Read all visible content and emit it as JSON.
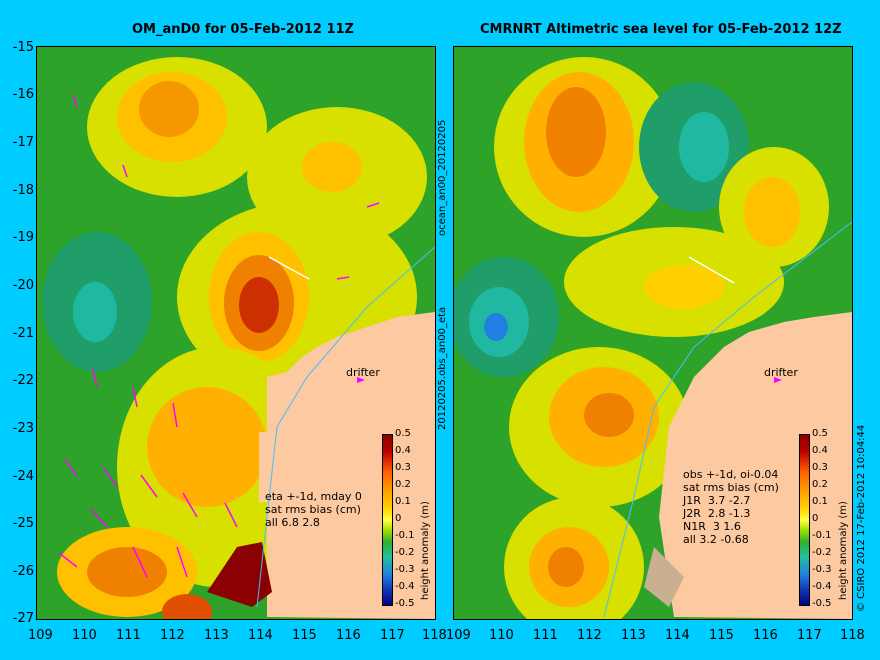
{
  "left_panel": {
    "title": "OM_anD0 for 05-Feb-2012 11Z",
    "side_label": "ocean_an00_20120205",
    "colorbar_label": "height anomaly (m)",
    "stats": [
      "eta +-1d, mday 0",
      "sat rms bias (cm)",
      "all 6.8 2.8"
    ],
    "drifter_label": "drifter"
  },
  "right_panel": {
    "title": "CMRNRT Altimetric sea level  for 05-Feb-2012 12Z",
    "side_label": "20120205.obs_an00_eta",
    "colorbar_label": "height anomaly (m)",
    "stats": [
      "obs +-1d, oi-0.04",
      "sat rms bias (cm)",
      "J1R  3.7 -2.7",
      "J2R  2.8 -1.3",
      "N1R  3 1.6",
      "all 3.2 -0.68"
    ],
    "drifter_label": "drifter"
  },
  "copyright": "© CSIRO 2012  17-Feb-2012 10:04:44",
  "y_ticks": [
    "-15",
    "-16",
    "-17",
    "-18",
    "-19",
    "-20",
    "-21",
    "-22",
    "-23",
    "-24",
    "-25",
    "-26",
    "-27"
  ],
  "x_ticks": [
    "109",
    "110",
    "111",
    "112",
    "113",
    "114",
    "115",
    "116",
    "117",
    "118"
  ],
  "colorbar_ticks": [
    "0.5",
    "0.4",
    "0.3",
    "0.2",
    "0.1",
    "0",
    "-0.1",
    "-0.2",
    "-0.3",
    "-0.4",
    "-0.5"
  ],
  "colors": {
    "background": "#00ccff",
    "land": "#fdc9a0",
    "stats_bg": "#fdc9a0"
  }
}
